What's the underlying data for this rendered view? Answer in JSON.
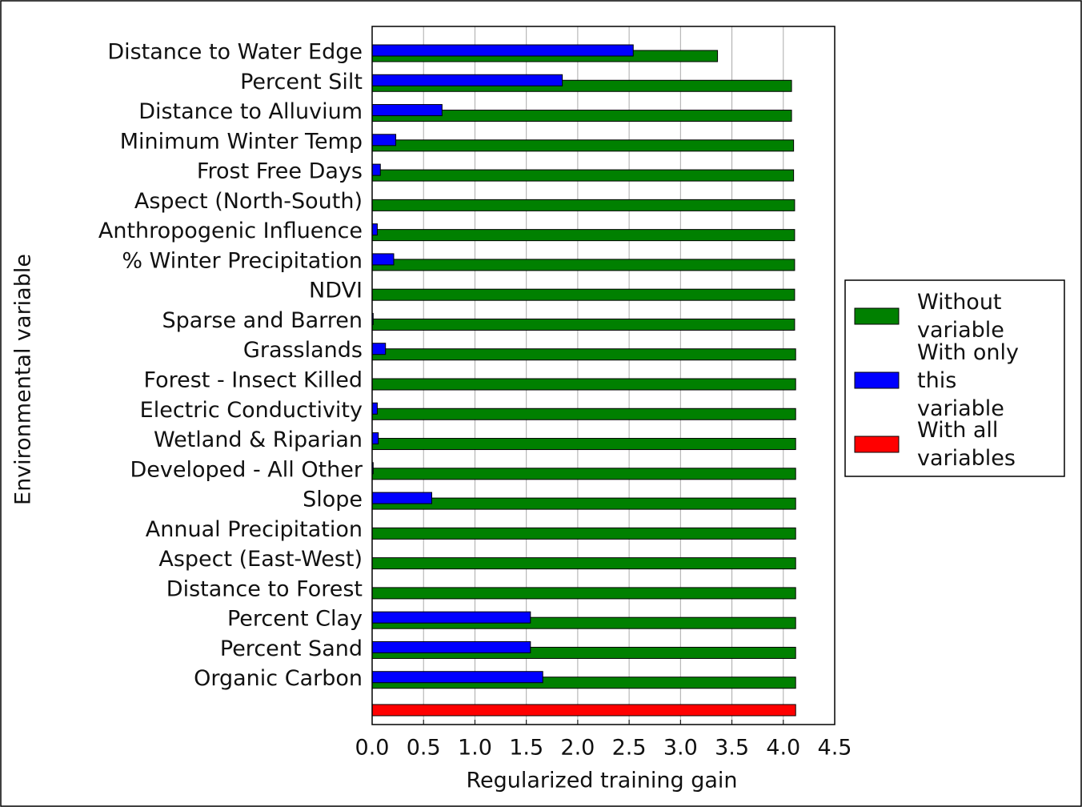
{
  "chart_data": {
    "type": "barh",
    "xlabel": "Regularized training gain",
    "ylabel": "Environmental variable",
    "categories": [
      "Distance to Water Edge",
      "Percent Silt",
      "Distance to Alluvium",
      "Minimum Winter Temp",
      "Frost Free Days",
      "Aspect (North-South)",
      "Anthropogenic Influence",
      "% Winter Precipitation",
      "NDVI",
      "Sparse and Barren",
      "Grasslands",
      "Forest - Insect Killed",
      "Electric Conductivity",
      "Wetland & Riparian",
      "Developed - All Other",
      "Slope",
      "Annual Precipitation",
      "Aspect (East-West)",
      "Distance to Forest",
      "Percent Clay",
      "Percent Sand",
      "Organic Carbon",
      null
    ],
    "series": [
      {
        "name": "Without variable",
        "color": "#008000",
        "values": [
          3.36,
          4.08,
          4.08,
          4.1,
          4.1,
          4.11,
          4.11,
          4.11,
          4.11,
          4.11,
          4.12,
          4.12,
          4.12,
          4.12,
          4.12,
          4.12,
          4.12,
          4.12,
          4.12,
          4.12,
          4.12,
          4.12,
          null
        ]
      },
      {
        "name": "With only this variable",
        "color": "#0000ff",
        "values": [
          2.54,
          1.85,
          0.68,
          0.23,
          0.08,
          0,
          0.05,
          0.21,
          0,
          0.01,
          0.13,
          0,
          0.05,
          0.06,
          0.01,
          0.58,
          0,
          0,
          0,
          1.54,
          1.54,
          1.66,
          null
        ]
      },
      {
        "name": "With all variables",
        "color": "#ff0000",
        "values": [
          null,
          null,
          null,
          null,
          null,
          null,
          null,
          null,
          null,
          null,
          null,
          null,
          null,
          null,
          null,
          null,
          null,
          null,
          null,
          null,
          null,
          null,
          4.12
        ]
      }
    ],
    "xlim": [
      0,
      4.5
    ],
    "xticks": [
      {
        "value": 0,
        "label": "0.0"
      },
      0.5,
      {
        "value": 1,
        "label": "1.0"
      },
      1.5,
      {
        "value": 2,
        "label": "2.0"
      },
      2.5,
      {
        "value": 3,
        "label": "3.0"
      },
      3.5,
      {
        "value": 4,
        "label": "4.0"
      },
      4.5
    ],
    "grid": true
  }
}
